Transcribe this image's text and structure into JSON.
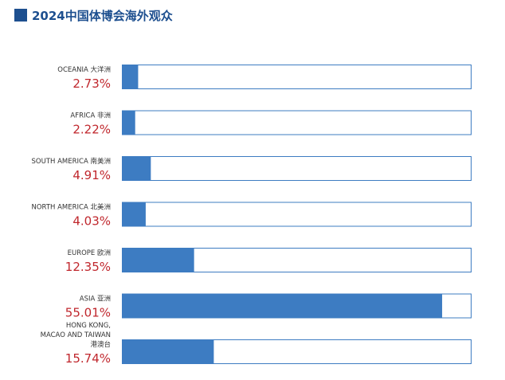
{
  "chart_data": {
    "type": "bar",
    "orientation": "horizontal",
    "title": "2024中国体博会海外观众",
    "unit": "%",
    "xlim": [
      0,
      60
    ],
    "grid": false,
    "legend": "none",
    "categories": [
      {
        "label_lines": [
          "OCEANIA 大洋洲"
        ],
        "value_label": "2.73%"
      },
      {
        "label_lines": [
          "AFRICA 非洲"
        ],
        "value_label": "2.22%"
      },
      {
        "label_lines": [
          "SOUTH AMERICA 南美洲"
        ],
        "value_label": "4.91%"
      },
      {
        "label_lines": [
          "NORTH AMERICA 北美洲"
        ],
        "value_label": "4.03%"
      },
      {
        "label_lines": [
          "EUROPE 欧洲"
        ],
        "value_label": "12.35%"
      },
      {
        "label_lines": [
          "ASIA 亚洲"
        ],
        "value_label": "55.01%"
      },
      {
        "label_lines": [
          "HONG KONG,",
          "MACAO AND TAIWAN",
          "港澳台"
        ],
        "value_label": "15.74%"
      }
    ],
    "values": [
      2.73,
      2.22,
      4.91,
      4.03,
      12.35,
      55.01,
      15.74
    ],
    "colors": {
      "bar_fill": "#3d7cc2",
      "bar_border": "#3d7cc2",
      "track": "#ffffff",
      "category_label": "#333333",
      "value_label": "#c0272d",
      "title": "#1d4f8f"
    }
  }
}
